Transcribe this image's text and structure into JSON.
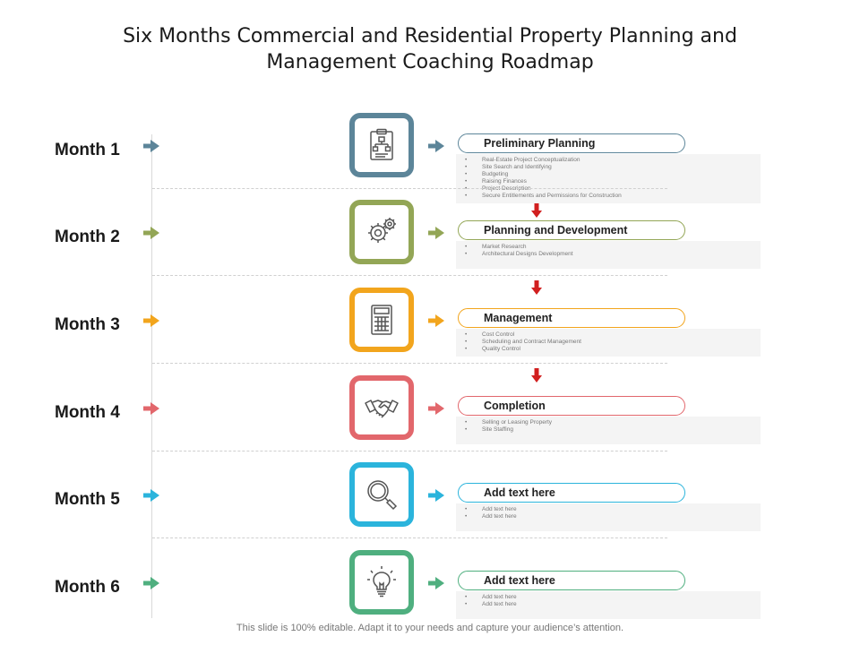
{
  "title_lines": [
    "Six Months Commercial and Residential Property Planning and",
    "Management Coaching Roadmap"
  ],
  "rows": [
    {
      "month": "Month 1",
      "color": "#5c8599",
      "icon": "org-chart-clipboard-icon",
      "heading": "Preliminary Planning",
      "bullets": [
        "Real-Estate Project Conceptualization",
        "Site Search and Identifying",
        "Budgeting",
        "Raising Finances",
        "Project Description",
        "Secure Entitlements and Permissions for Construction"
      ]
    },
    {
      "month": "Month 2",
      "color": "#93a656",
      "icon": "gears-icon",
      "heading": "Planning and Development",
      "bullets": [
        "Market Research",
        "Architectural Designs Development"
      ]
    },
    {
      "month": "Month 3",
      "color": "#f2a51d",
      "icon": "calculator-icon",
      "heading": "Management",
      "bullets": [
        "Cost Control",
        "Scheduling and Contract Management",
        "Quality Control"
      ]
    },
    {
      "month": "Month 4",
      "color": "#e2676c",
      "icon": "handshake-icon",
      "heading": "Completion",
      "bullets": [
        "Selling or Leasing Property",
        "Site Staffing"
      ]
    },
    {
      "month": "Month 5",
      "color": "#2bb4dc",
      "icon": "magnifier-icon",
      "heading": "Add text here",
      "bullets": [
        "Add text here",
        "Add text here"
      ]
    },
    {
      "month": "Month 6",
      "color": "#4faf7f",
      "icon": "lightbulb-icon",
      "heading": "Add text here",
      "bullets": [
        "Add text here",
        "Add text here"
      ]
    }
  ],
  "down_arrow_color": "#d11f1f",
  "footer": "This slide is 100% editable. Adapt it to your needs and capture your audience’s attention."
}
